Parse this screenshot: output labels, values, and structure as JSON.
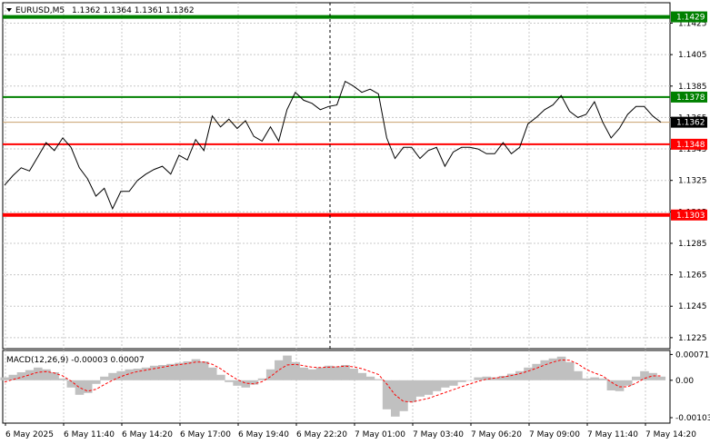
{
  "header": {
    "symbol": "EURUSD,M5",
    "ohlc": "1.1362 1.1364 1.1361 1.1362",
    "menu_icon": "triangle-down-icon"
  },
  "macd": {
    "label": "MACD(12,26,9) -0.00003 0.00007",
    "ticks": [
      "0.00071",
      "0.00",
      "-0.00103"
    ]
  },
  "colors": {
    "price_line": "#000000",
    "resistance": "#008000",
    "support": "#ff0000",
    "current_price_line": "#c8a06e",
    "histogram": "#c0c0c0",
    "signal_line": "#ff0000",
    "grid": "#c8c8c8"
  },
  "chart_data": {
    "type": "line",
    "instrument": "EURUSD",
    "timeframe": "M5",
    "grid": true,
    "ylim": [
      1.1218,
      1.1438
    ],
    "y_ticks": [
      "1.1425",
      "1.1405",
      "1.1385",
      "1.1365",
      "1.1345",
      "1.1325",
      "1.1305",
      "1.1285",
      "1.1265",
      "1.1245",
      "1.1225"
    ],
    "x_ticks": [
      "6 May 2025",
      "6 May 11:40",
      "6 May 14:20",
      "6 May 17:00",
      "6 May 19:40",
      "6 May 22:20",
      "7 May 01:00",
      "7 May 03:40",
      "7 May 06:20",
      "7 May 09:00",
      "7 May 11:40",
      "7 May 14:20"
    ],
    "levels": [
      {
        "value": 1.1429,
        "label": "1.1429",
        "color": "#008000"
      },
      {
        "value": 1.1378,
        "label": "1.1378",
        "color": "#008000"
      },
      {
        "value": 1.1348,
        "label": "1.1348",
        "color": "#ff0000"
      },
      {
        "value": 1.1303,
        "label": "1.1303",
        "color": "#ff0000"
      }
    ],
    "current_price": {
      "value": 1.1362,
      "label": "1.1362"
    },
    "close": [
      1.1322,
      1.1328,
      1.1333,
      1.1331,
      1.134,
      1.1349,
      1.1344,
      1.1352,
      1.1346,
      1.1333,
      1.1326,
      1.1315,
      1.132,
      1.1307,
      1.1318,
      1.1318,
      1.1325,
      1.1329,
      1.1332,
      1.1334,
      1.1329,
      1.1341,
      1.1338,
      1.1351,
      1.1344,
      1.1366,
      1.1359,
      1.1364,
      1.1358,
      1.1363,
      1.1353,
      1.135,
      1.1359,
      1.135,
      1.137,
      1.1381,
      1.1376,
      1.1374,
      1.137,
      1.1372,
      1.1373,
      1.1388,
      1.1385,
      1.1381,
      1.1383,
      1.138,
      1.1352,
      1.1339,
      1.1346,
      1.1346,
      1.1339,
      1.1344,
      1.1346,
      1.1334,
      1.1343,
      1.1346,
      1.1346,
      1.1345,
      1.1342,
      1.1342,
      1.1349,
      1.1342,
      1.1346,
      1.1361,
      1.1365,
      1.137,
      1.1373,
      1.1379,
      1.1369,
      1.1365,
      1.1367,
      1.1375,
      1.1362,
      1.1352,
      1.1358,
      1.1367,
      1.1372,
      1.1372,
      1.1366,
      1.1362
    ],
    "macd_histogram": [
      8e-05,
      0.00015,
      0.00022,
      0.00028,
      0.00035,
      0.0003,
      0.00022,
      5e-05,
      -0.0002,
      -0.0004,
      -0.00035,
      -0.0001,
      0.0001,
      0.0002,
      0.00025,
      0.0003,
      0.00032,
      0.00035,
      0.0004,
      0.00042,
      0.00045,
      0.00048,
      0.00052,
      0.00058,
      0.00052,
      0.00035,
      0.00015,
      -5e-05,
      -0.00015,
      -0.0002,
      -0.00012,
      5e-05,
      0.0003,
      0.00055,
      0.00068,
      0.0005,
      0.00035,
      0.0003,
      0.00035,
      0.0004,
      0.00038,
      0.00042,
      0.00032,
      0.0002,
      0.0001,
      3e-05,
      -0.0008,
      -0.001,
      -0.00085,
      -0.0006,
      -0.00045,
      -0.0004,
      -0.0003,
      -0.0002,
      -0.00015,
      -5e-05,
      0.0,
      8e-05,
      0.0001,
      8e-05,
      0.00012,
      0.00018,
      0.00025,
      0.00035,
      0.00045,
      0.00055,
      0.0006,
      0.00065,
      0.0005,
      0.00025,
      5e-05,
      8e-05,
      5e-05,
      -0.00028,
      -0.0003,
      -0.00015,
      0.0001,
      0.00025,
      0.0002,
      0.0001
    ],
    "macd_signal": [
      -5e-05,
      2e-05,
      8e-05,
      0.00015,
      0.00022,
      0.00024,
      0.0002,
      0.00012,
      -2e-05,
      -0.0002,
      -0.0003,
      -0.00025,
      -0.00012,
      0.0,
      0.0001,
      0.00018,
      0.00024,
      0.00028,
      0.00032,
      0.00036,
      0.0004,
      0.00043,
      0.00046,
      0.0005,
      0.0005,
      0.00044,
      0.00032,
      0.00016,
      2e-05,
      -8e-05,
      -0.0001,
      -4e-05,
      0.0001,
      0.00028,
      0.00042,
      0.00044,
      0.0004,
      0.00036,
      0.00035,
      0.00036,
      0.00037,
      0.00039,
      0.00037,
      0.00032,
      0.00024,
      0.00016,
      -0.0001,
      -0.0004,
      -0.00058,
      -0.0006,
      -0.00055,
      -0.0005,
      -0.00042,
      -0.00034,
      -0.00026,
      -0.00018,
      -0.0001,
      -3e-05,
      3e-05,
      6e-05,
      9e-05,
      0.00013,
      0.00018,
      0.00025,
      0.00033,
      0.00042,
      0.0005,
      0.00056,
      0.00055,
      0.00045,
      0.0003,
      0.0002,
      0.00012,
      -5e-05,
      -0.00018,
      -0.00018,
      -8e-05,
      5e-05,
      0.00012,
      0.00012
    ],
    "macd_range": [
      -0.00118,
      0.00082
    ]
  }
}
